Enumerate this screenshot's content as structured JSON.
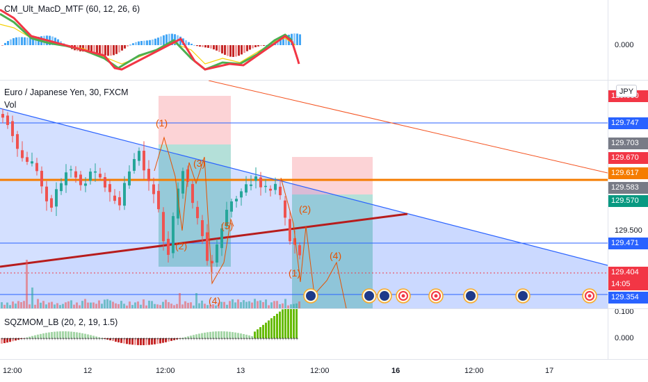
{
  "macd_pane": {
    "title": "CM_Ult_MacD_MTF (60, 12, 26, 6)",
    "zero_label": "0.000"
  },
  "price_pane": {
    "title": "Euro / Japanese Yen, 30, FXCM",
    "vol_label": "Vol",
    "currency_button": "JPY",
    "axis_labels": [
      "129.500"
    ],
    "top_cut_label": "129.600"
  },
  "price_tags": [
    {
      "value": "129.747",
      "color": "#2962ff"
    },
    {
      "value": "129.703",
      "color": "#787b86"
    },
    {
      "value": "129.670",
      "color": "#f23645"
    },
    {
      "value": "129.617",
      "color": "#f57c00"
    },
    {
      "value": "129.583",
      "color": "#787b86"
    },
    {
      "value": "129.570",
      "color": "#089981"
    },
    {
      "value": "129.471",
      "color": "#2962ff"
    },
    {
      "value": "129.404",
      "color": "#f23645"
    },
    {
      "value": "14:05",
      "color": "#f23645"
    },
    {
      "value": "129.354",
      "color": "#2962ff"
    }
  ],
  "wave_labels": [
    "(1)",
    "(3)",
    "(5)",
    "(2)",
    "(4)",
    "(2)",
    "(4)",
    "(1)"
  ],
  "volume_pane": {
    "top_label": "0.100"
  },
  "sqz_pane": {
    "title": "SQZMOM_LB (20, 2, 19, 1.5)",
    "zero_label": "0.000"
  },
  "time_axis": [
    "12:00",
    "12",
    "12:00",
    "13",
    "12:00",
    "16",
    "12:00",
    "17"
  ],
  "colors": {
    "blue_line": "#2962ff",
    "orange_line": "#f57c00",
    "dark_red_line": "#b71c1c",
    "wave_orange": "#e65100",
    "bull": "#26a69a",
    "bear": "#ef5350"
  }
}
